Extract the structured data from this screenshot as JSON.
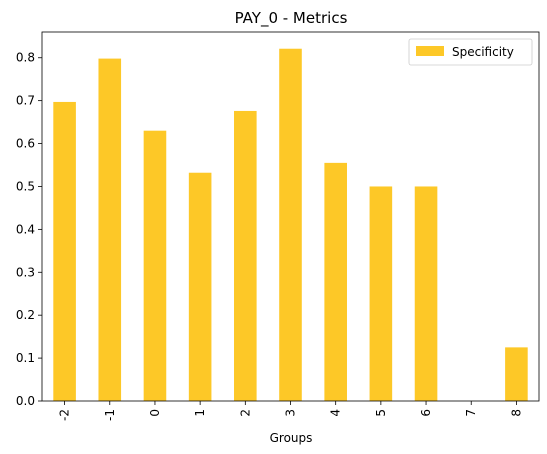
{
  "chart_data": {
    "type": "bar",
    "title": "PAY_0 - Metrics",
    "xlabel": "Groups",
    "ylabel": "",
    "categories": [
      "-2",
      "-1",
      "0",
      "1",
      "2",
      "3",
      "4",
      "5",
      "6",
      "7",
      "8"
    ],
    "series": [
      {
        "name": "Specificity",
        "color": "#fdc827",
        "values": [
          0.697,
          0.798,
          0.63,
          0.532,
          0.676,
          0.821,
          0.555,
          0.5,
          0.5,
          0.0,
          0.125
        ]
      }
    ],
    "ylim": [
      0,
      0.86
    ],
    "yticks": [
      "0.0",
      "0.1",
      "0.2",
      "0.3",
      "0.4",
      "0.5",
      "0.6",
      "0.7",
      "0.8"
    ],
    "grid": false,
    "legend_position": "top-right"
  }
}
